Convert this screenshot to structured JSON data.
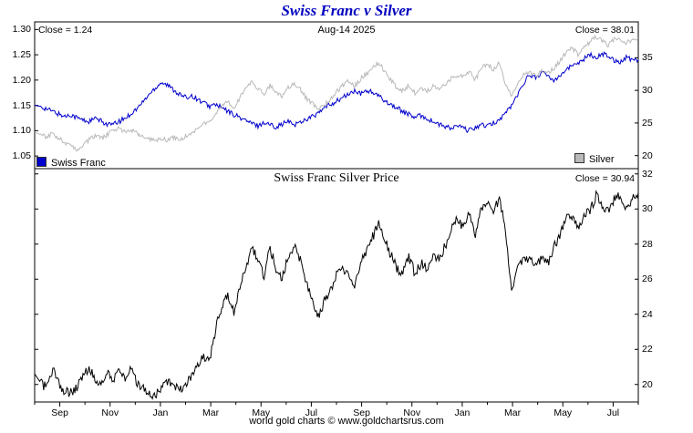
{
  "page_title": "Swiss Franc v Silver",
  "footer": "world gold charts © www.goldchartsrus.com",
  "top_panel": {
    "close_left": "Close = 1.24",
    "date": "Aug-14 2025",
    "close_right": "Close = 38.01",
    "legend": [
      {
        "label": "Swiss Franc",
        "color": "#0000cc"
      },
      {
        "label": "Silver",
        "color": "#b9b9b9"
      }
    ]
  },
  "bottom_panel": {
    "title": "Swiss Franc Silver Price",
    "close_right": "Close = 30.94"
  },
  "chart_data": [
    {
      "type": "line",
      "title": "Swiss Franc v Silver",
      "date_annotation": "Aug-14 2025",
      "grid": false,
      "legend_position": "bottom",
      "x_span_months": 24,
      "x_label_month_positions": [
        1,
        3,
        5,
        7,
        9,
        11,
        13,
        15,
        17,
        19,
        21,
        23
      ],
      "x_labels": [
        "Sep",
        "Nov",
        "Jan",
        "Mar",
        "May",
        "Jul",
        "Sep",
        "Nov",
        "Jan",
        "Mar",
        "May",
        "Jul"
      ],
      "left_axis": {
        "label": "Swiss Franc",
        "ticks": [
          1.05,
          1.1,
          1.15,
          1.2,
          1.25,
          1.3
        ],
        "ylim": [
          1.025,
          1.315
        ]
      },
      "right_axis": {
        "label": "Silver",
        "ticks": [
          20,
          25,
          30,
          35
        ],
        "ylim": [
          18.0,
          40.5
        ]
      },
      "series": [
        {
          "name": "Swiss Franc",
          "axis": "left",
          "color": "#0000cc",
          "close": 1.24,
          "jitter": 0.005,
          "values": [
            1.15,
            1.148,
            1.143,
            1.138,
            1.133,
            1.128,
            1.132,
            1.126,
            1.121,
            1.118,
            1.124,
            1.119,
            1.113,
            1.112,
            1.118,
            1.125,
            1.134,
            1.144,
            1.158,
            1.172,
            1.185,
            1.196,
            1.19,
            1.181,
            1.172,
            1.165,
            1.17,
            1.162,
            1.155,
            1.148,
            1.152,
            1.145,
            1.138,
            1.132,
            1.126,
            1.12,
            1.114,
            1.11,
            1.116,
            1.112,
            1.108,
            1.113,
            1.118,
            1.112,
            1.117,
            1.123,
            1.128,
            1.134,
            1.145,
            1.152,
            1.158,
            1.165,
            1.172,
            1.178,
            1.172,
            1.18,
            1.175,
            1.168,
            1.16,
            1.152,
            1.145,
            1.138,
            1.132,
            1.126,
            1.13,
            1.124,
            1.118,
            1.112,
            1.108,
            1.104,
            1.11,
            1.105,
            1.1,
            1.106,
            1.112,
            1.108,
            1.115,
            1.122,
            1.135,
            1.15,
            1.17,
            1.195,
            1.21,
            1.205,
            1.215,
            1.208,
            1.2,
            1.21,
            1.22,
            1.228,
            1.235,
            1.242,
            1.25,
            1.245,
            1.252,
            1.248,
            1.24,
            1.235,
            1.246,
            1.24,
            1.24
          ]
        },
        {
          "name": "Silver",
          "axis": "right",
          "color": "#b9b9b9",
          "close": 38.01,
          "jitter": 0.35,
          "values": [
            23.6,
            23.2,
            22.8,
            23.4,
            22.6,
            22.0,
            21.4,
            20.9,
            21.6,
            22.4,
            23.0,
            22.6,
            23.2,
            23.8,
            24.2,
            23.6,
            24.0,
            23.4,
            23.0,
            22.6,
            22.2,
            22.6,
            22.3,
            22.8,
            22.4,
            22.9,
            23.5,
            24.3,
            24.8,
            25.0,
            26.5,
            27.5,
            28.3,
            27.2,
            28.8,
            30.5,
            31.5,
            30.2,
            29.4,
            30.8,
            29.6,
            29.0,
            30.4,
            31.0,
            30.2,
            28.8,
            28.0,
            26.9,
            27.8,
            28.6,
            29.8,
            30.8,
            31.4,
            30.6,
            31.8,
            32.6,
            33.4,
            34.2,
            33.0,
            31.6,
            30.4,
            30.0,
            30.8,
            29.6,
            30.4,
            29.8,
            30.6,
            30.2,
            31.0,
            31.8,
            32.4,
            32.0,
            32.8,
            31.6,
            33.4,
            34.0,
            33.2,
            34.2,
            30.8,
            29.2,
            31.0,
            32.4,
            32.8,
            32.2,
            33.0,
            32.6,
            33.4,
            34.4,
            35.8,
            36.4,
            35.6,
            36.8,
            37.4,
            38.2,
            37.6,
            36.9,
            37.8,
            38.0,
            37.2,
            37.8,
            38.01
          ]
        }
      ]
    },
    {
      "type": "line",
      "title": "Swiss Franc Silver Price",
      "grid": false,
      "right_axis": {
        "label": "Swiss Franc Silver Price",
        "ticks": [
          20,
          22,
          24,
          26,
          28,
          30,
          32
        ],
        "ylim": [
          19.0,
          32.3
        ]
      },
      "series": [
        {
          "name": "Swiss Franc Silver Price",
          "color": "#000000",
          "close": 30.94,
          "jitter": 0.28,
          "values": [
            20.6,
            20.1,
            19.8,
            20.9,
            20.0,
            19.6,
            19.5,
            19.8,
            20.4,
            21.0,
            20.4,
            19.9,
            20.6,
            20.2,
            20.8,
            20.3,
            20.9,
            20.1,
            19.8,
            19.5,
            19.4,
            19.8,
            20.2,
            19.9,
            19.6,
            20.0,
            20.5,
            21.0,
            21.6,
            21.5,
            23.2,
            24.3,
            25.1,
            24.2,
            25.6,
            26.7,
            27.9,
            27.0,
            26.2,
            27.8,
            26.6,
            26.0,
            27.3,
            27.9,
            27.1,
            25.7,
            24.9,
            23.8,
            24.8,
            25.3,
            26.4,
            26.6,
            26.2,
            25.7,
            27.0,
            27.7,
            28.4,
            29.2,
            28.2,
            27.4,
            26.6,
            26.4,
            27.3,
            26.3,
            26.9,
            26.6,
            27.4,
            27.1,
            27.9,
            28.8,
            29.4,
            29.0,
            29.8,
            28.6,
            30.0,
            30.5,
            29.8,
            30.6,
            28.7,
            25.5,
            26.6,
            27.2,
            27.1,
            26.7,
            27.2,
            26.9,
            27.8,
            28.5,
            29.4,
            29.6,
            28.8,
            29.6,
            29.9,
            30.8,
            30.3,
            29.8,
            30.5,
            30.8,
            29.9,
            30.5,
            30.94
          ]
        }
      ]
    }
  ]
}
